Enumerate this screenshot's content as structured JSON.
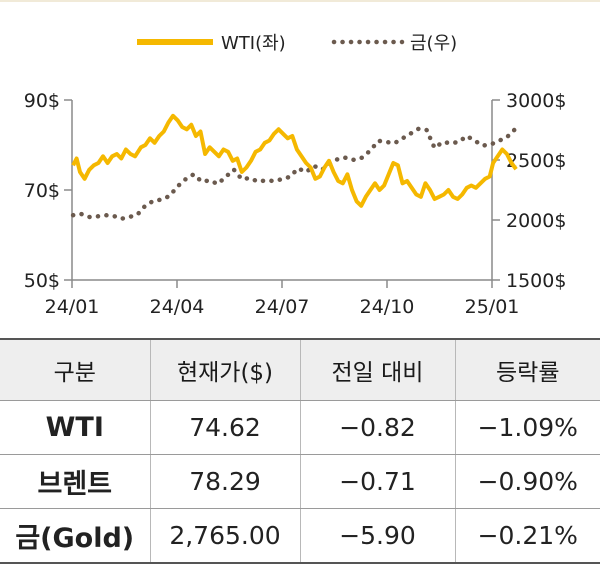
{
  "chart_data": {
    "type": "line",
    "legend": [
      {
        "name": "WTI(좌)",
        "style": "solid",
        "color": "#f5b800"
      },
      {
        "name": "금(우)",
        "style": "dotted",
        "color": "#6b5a4e"
      }
    ],
    "legend_position": "top-center",
    "x_labels": [
      "24/01",
      "24/04",
      "24/07",
      "24/10",
      "25/01"
    ],
    "left_axis": {
      "ticks": [
        50,
        70,
        90
      ],
      "tick_labels": [
        "50$",
        "70$",
        "90$"
      ],
      "ylim": [
        50,
        90
      ]
    },
    "right_axis": {
      "ticks": [
        1500,
        2000,
        2500,
        3000
      ],
      "tick_labels": [
        "1500$",
        "2000$",
        "2500$",
        "3000$"
      ],
      "ylim": [
        1500,
        3000
      ]
    },
    "series": [
      {
        "name": "WTI(좌)",
        "axis": "left",
        "color": "#f5b800",
        "x": [
          "2024-01-02",
          "2024-01-05",
          "2024-01-08",
          "2024-01-12",
          "2024-01-16",
          "2024-01-20",
          "2024-01-24",
          "2024-01-28",
          "2024-02-01",
          "2024-02-05",
          "2024-02-09",
          "2024-02-13",
          "2024-02-17",
          "2024-02-21",
          "2024-02-25",
          "2024-03-01",
          "2024-03-05",
          "2024-03-09",
          "2024-03-13",
          "2024-03-17",
          "2024-03-21",
          "2024-03-25",
          "2024-03-29",
          "2024-04-02",
          "2024-04-06",
          "2024-04-10",
          "2024-04-14",
          "2024-04-18",
          "2024-04-22",
          "2024-04-26",
          "2024-04-30",
          "2024-05-04",
          "2024-05-08",
          "2024-05-12",
          "2024-05-16",
          "2024-05-20",
          "2024-05-24",
          "2024-05-28",
          "2024-06-01",
          "2024-06-05",
          "2024-06-09",
          "2024-06-13",
          "2024-06-17",
          "2024-06-21",
          "2024-06-25",
          "2024-06-29",
          "2024-07-03",
          "2024-07-07",
          "2024-07-11",
          "2024-07-15",
          "2024-07-19",
          "2024-07-23",
          "2024-07-27",
          "2024-07-31",
          "2024-08-04",
          "2024-08-08",
          "2024-08-12",
          "2024-08-16",
          "2024-08-20",
          "2024-08-24",
          "2024-08-28",
          "2024-09-01",
          "2024-09-05",
          "2024-09-09",
          "2024-09-13",
          "2024-09-17",
          "2024-09-21",
          "2024-09-25",
          "2024-09-29",
          "2024-10-03",
          "2024-10-07",
          "2024-10-11",
          "2024-10-15",
          "2024-10-19",
          "2024-10-23",
          "2024-10-27",
          "2024-10-31",
          "2024-11-04",
          "2024-11-08",
          "2024-11-12",
          "2024-11-16",
          "2024-11-20",
          "2024-11-24",
          "2024-11-28",
          "2024-12-02",
          "2024-12-06",
          "2024-12-10",
          "2024-12-14",
          "2024-12-18",
          "2024-12-22",
          "2024-12-26",
          "2024-12-30",
          "2025-01-02",
          "2025-01-06",
          "2025-01-10",
          "2025-01-14",
          "2025-01-18",
          "2025-01-22"
        ],
        "values": [
          75.5,
          77.0,
          74.0,
          72.5,
          74.5,
          75.5,
          76.0,
          77.5,
          76.0,
          77.5,
          78.0,
          77.0,
          79.0,
          78.0,
          77.5,
          79.5,
          80.0,
          81.5,
          80.5,
          82.0,
          83.0,
          85.0,
          86.5,
          85.5,
          84.0,
          83.5,
          84.5,
          82.0,
          83.0,
          78.0,
          79.5,
          78.5,
          77.5,
          79.0,
          78.5,
          76.5,
          77.0,
          74.0,
          75.0,
          76.5,
          78.5,
          79.0,
          80.5,
          81.0,
          82.5,
          83.5,
          82.5,
          81.5,
          82.0,
          79.0,
          77.5,
          76.0,
          75.0,
          72.5,
          73.0,
          75.0,
          76.5,
          74.0,
          72.0,
          71.5,
          73.5,
          70.0,
          67.5,
          66.5,
          68.5,
          70.0,
          71.5,
          70.0,
          71.0,
          73.5,
          76.0,
          75.5,
          71.5,
          72.0,
          70.5,
          69.0,
          68.5,
          71.5,
          70.0,
          68.0,
          68.5,
          69.0,
          70.0,
          68.5,
          68.0,
          69.0,
          70.5,
          71.0,
          70.5,
          71.5,
          72.5,
          73.0,
          76.0,
          77.5,
          79.0,
          78.0,
          76.0,
          74.62
        ]
      },
      {
        "name": "금(우)",
        "axis": "right",
        "color": "#6b5a4e",
        "x": [
          "2024-01-02",
          "2024-01-09",
          "2024-01-16",
          "2024-01-23",
          "2024-01-30",
          "2024-02-06",
          "2024-02-13",
          "2024-02-20",
          "2024-02-27",
          "2024-03-05",
          "2024-03-12",
          "2024-03-19",
          "2024-03-26",
          "2024-04-02",
          "2024-04-09",
          "2024-04-16",
          "2024-04-23",
          "2024-04-30",
          "2024-05-07",
          "2024-05-14",
          "2024-05-21",
          "2024-05-28",
          "2024-06-04",
          "2024-06-11",
          "2024-06-18",
          "2024-06-25",
          "2024-07-02",
          "2024-07-09",
          "2024-07-16",
          "2024-07-23",
          "2024-07-30",
          "2024-08-06",
          "2024-08-13",
          "2024-08-20",
          "2024-08-27",
          "2024-09-03",
          "2024-09-10",
          "2024-09-17",
          "2024-09-24",
          "2024-10-01",
          "2024-10-08",
          "2024-10-15",
          "2024-10-22",
          "2024-10-29",
          "2024-11-05",
          "2024-11-12",
          "2024-11-19",
          "2024-11-26",
          "2024-12-03",
          "2024-12-10",
          "2024-12-17",
          "2024-12-24",
          "2024-12-31",
          "2025-01-07",
          "2025-01-14",
          "2025-01-22"
        ],
        "values": [
          2040,
          2050,
          2025,
          2030,
          2040,
          2035,
          2010,
          2025,
          2045,
          2120,
          2160,
          2170,
          2200,
          2280,
          2340,
          2380,
          2320,
          2330,
          2300,
          2360,
          2420,
          2340,
          2350,
          2320,
          2330,
          2325,
          2340,
          2360,
          2430,
          2400,
          2450,
          2420,
          2470,
          2510,
          2520,
          2500,
          2520,
          2580,
          2660,
          2650,
          2640,
          2680,
          2720,
          2760,
          2750,
          2600,
          2650,
          2640,
          2650,
          2700,
          2660,
          2620,
          2630,
          2660,
          2690,
          2765
        ]
      }
    ]
  },
  "table": {
    "headers": [
      "구분",
      "현재가($)",
      "전일 대비",
      "등락률"
    ],
    "rows": [
      {
        "name": "WTI",
        "price": "74.62",
        "change": "−0.82",
        "rate": "−1.09%"
      },
      {
        "name": "브렌트",
        "price": "78.29",
        "change": "−0.71",
        "rate": "−0.90%"
      },
      {
        "name": "금(Gold)",
        "price": "2,765.00",
        "change": "−5.90",
        "rate": "−0.21%"
      }
    ]
  }
}
